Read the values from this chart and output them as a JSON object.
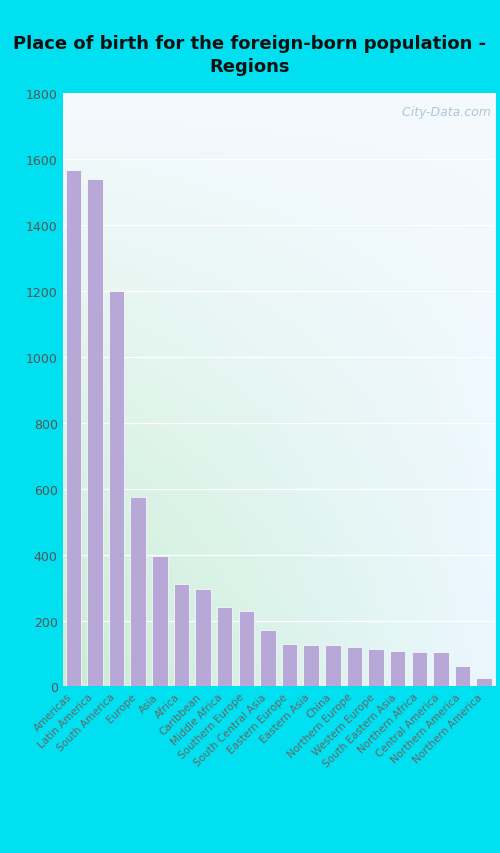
{
  "title": "Place of birth for the foreign-born population -\nRegions",
  "labels": [
    "Americas",
    "Latin America",
    "South America",
    "Europe",
    "Asia",
    "Africa",
    "Caribbean",
    "Middle Africa",
    "Southern Europe",
    "South Central Asia",
    "Eastern Europe",
    "Eastern Asia",
    "China",
    "Northern Europe",
    "Western Europe",
    "South Eastern Asia",
    "Northern Africa",
    "Central America",
    "Northern America",
    "Northern America"
  ],
  "values": [
    1565,
    1540,
    1200,
    575,
    395,
    310,
    295,
    240,
    228,
    170,
    130,
    125,
    125,
    120,
    115,
    108,
    105,
    105,
    62,
    25
  ],
  "bar_color": "#b8a8d8",
  "bar_edge_color": "#ffffff",
  "ylim": [
    0,
    1800
  ],
  "yticks": [
    0,
    200,
    400,
    600,
    800,
    1000,
    1200,
    1400,
    1600,
    1800
  ],
  "outer_bg": "#00e0f0",
  "grad_top_color": "#f0f8ff",
  "grad_bottom_left": "#c8ecd4",
  "title_fontsize": 13,
  "ytick_fontsize": 9,
  "xtick_fontsize": 7.5,
  "watermark": "  City-Data.com",
  "watermark_fontsize": 9
}
